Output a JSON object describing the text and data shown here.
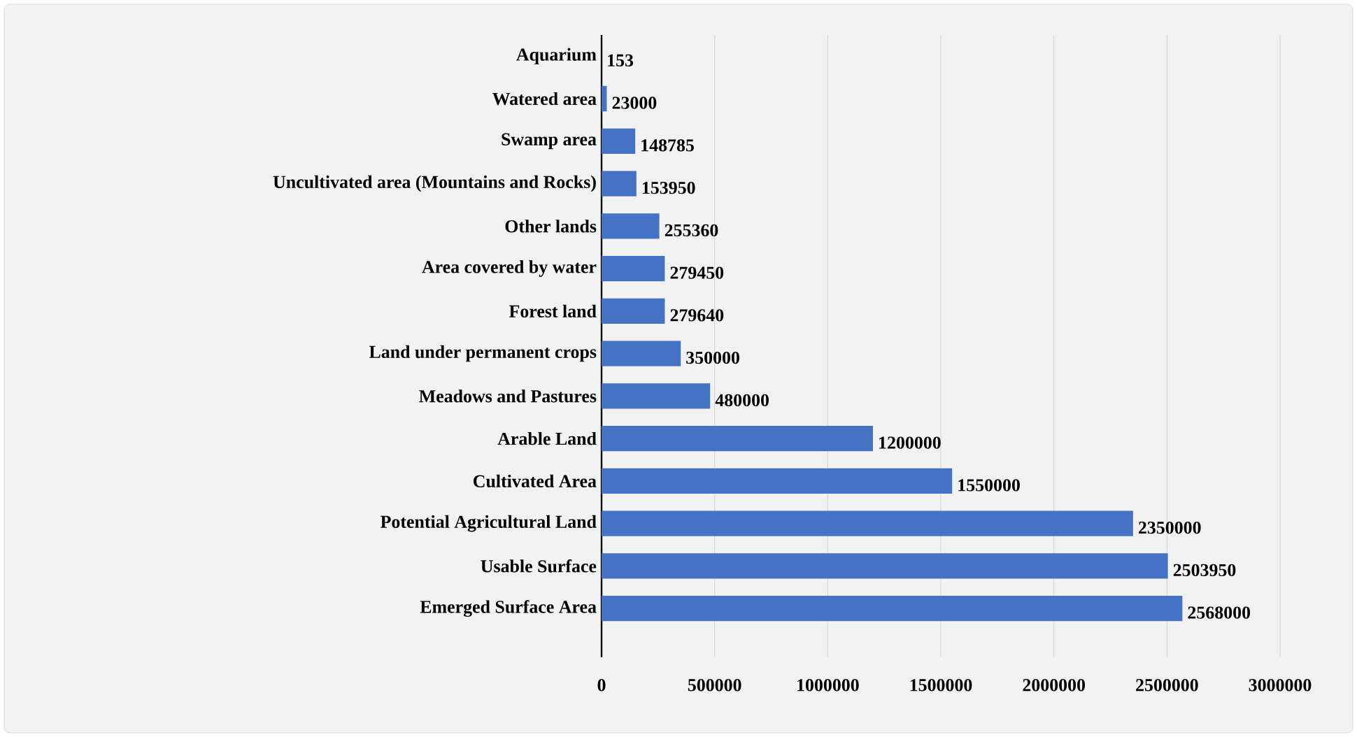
{
  "chart_data": {
    "type": "bar",
    "orientation": "horizontal",
    "categories": [
      "Aquarium",
      "Watered area",
      "Swamp area",
      "Uncultivated area (Mountains and Rocks)",
      "Other lands",
      "Area covered by water",
      "Forest land",
      "Land under permanent crops",
      "Meadows and Pastures",
      "Arable Land",
      "Cultivated Area",
      "Potential Agricultural Land",
      "Usable Surface",
      "Emerged Surface Area"
    ],
    "values": [
      153,
      23000,
      148785,
      153950,
      255360,
      279450,
      279640,
      350000,
      480000,
      1200000,
      1550000,
      2350000,
      2503950,
      2568000
    ],
    "color": "#4472c4",
    "xlim": [
      0,
      3000000
    ],
    "xticks": [
      0,
      500000,
      1000000,
      1500000,
      2000000,
      2500000,
      3000000
    ],
    "grid": "x",
    "data_labels": true
  }
}
